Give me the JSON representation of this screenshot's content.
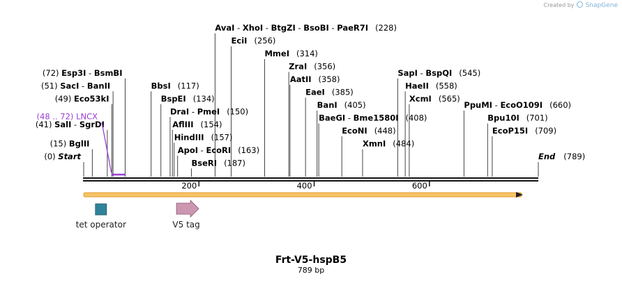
{
  "credit": {
    "text": "Created by",
    "brand": "SnapGene"
  },
  "plasmid": {
    "name": "Frt-V5-hspB5",
    "length_label": "789 bp",
    "length": 789
  },
  "colors": {
    "backbone": "#111111",
    "orf_fill": "#f4bd52",
    "orf_stroke": "#e08a1a",
    "tet_operator": "#2f8299",
    "v5_tag": "#cc96b1",
    "lncx": "#9b3fd6"
  },
  "ruler_ticks": [
    {
      "pos": 200,
      "label": "200"
    },
    {
      "pos": 400,
      "label": "400"
    },
    {
      "pos": 600,
      "label": "600"
    }
  ],
  "sites": [
    {
      "parts": [
        {
          "t": "AvaI",
          "b": true
        },
        {
          "t": "  -  ",
          "b": false
        },
        {
          "t": "XhoI",
          "b": true
        },
        {
          "t": "  -  ",
          "b": false
        },
        {
          "t": "BtgZI",
          "b": true
        },
        {
          "t": "  -  ",
          "b": false
        },
        {
          "t": "BsoBI",
          "b": true
        },
        {
          "t": "  -  ",
          "b": false
        },
        {
          "t": "PaeR7I",
          "b": true
        }
      ],
      "num": "(228)",
      "pos": 228,
      "row": 0
    },
    {
      "parts": [
        {
          "t": "EciI",
          "b": true
        }
      ],
      "num": "(256)",
      "pos": 256,
      "row": 1
    },
    {
      "parts": [
        {
          "t": "MmeI",
          "b": true
        }
      ],
      "num": "(314)",
      "pos": 314,
      "row": 2
    },
    {
      "parts": [
        {
          "t": "ZraI",
          "b": true
        }
      ],
      "num": "(356)",
      "pos": 356,
      "row": 3
    },
    {
      "parts": [
        {
          "t": "AatII",
          "b": true
        }
      ],
      "num": "(358)",
      "pos": 358,
      "row": 4
    },
    {
      "parts": [
        {
          "t": "EaeI",
          "b": true
        }
      ],
      "num": "(385)",
      "pos": 385,
      "row": 5
    },
    {
      "parts": [
        {
          "t": "BanI",
          "b": true
        }
      ],
      "num": "(405)",
      "pos": 405,
      "row": 6
    },
    {
      "parts": [
        {
          "t": "BaeGI",
          "b": true
        },
        {
          "t": "  -  ",
          "b": false
        },
        {
          "t": "Bme1580I",
          "b": true
        }
      ],
      "num": "(408)",
      "pos": 408,
      "row": 7
    },
    {
      "parts": [
        {
          "t": "EcoNI",
          "b": true
        }
      ],
      "num": "(448)",
      "pos": 448,
      "row": 8
    },
    {
      "parts": [
        {
          "t": "XmnI",
          "b": true
        }
      ],
      "num": "(484)",
      "pos": 484,
      "row": 9
    },
    {
      "parts": [
        {
          "t": "SapI",
          "b": true
        },
        {
          "t": "  -  ",
          "b": false
        },
        {
          "t": "BspQI",
          "b": true
        }
      ],
      "num": "(545)",
      "pos": 545,
      "row": 3.5
    },
    {
      "parts": [
        {
          "t": "HaeII",
          "b": true
        }
      ],
      "num": "(558)",
      "pos": 558,
      "row": 4.5
    },
    {
      "parts": [
        {
          "t": "XcmI",
          "b": true
        }
      ],
      "num": "(565)",
      "pos": 565,
      "row": 5.5
    },
    {
      "parts": [
        {
          "t": "PpuMI",
          "b": true
        },
        {
          "t": "  -  ",
          "b": false
        },
        {
          "t": "EcoO109I",
          "b": true
        }
      ],
      "num": "(660)",
      "pos": 660,
      "row": 6
    },
    {
      "parts": [
        {
          "t": "Bpu10I",
          "b": true
        }
      ],
      "num": "(701)",
      "pos": 701,
      "row": 7
    },
    {
      "parts": [
        {
          "t": "EcoP15I",
          "b": true
        }
      ],
      "num": "(709)",
      "pos": 709,
      "row": 8
    },
    {
      "parts": [
        {
          "t": "BbsI",
          "b": true
        }
      ],
      "num": "(117)",
      "pos": 117,
      "row": 4.5
    },
    {
      "parts": [
        {
          "t": "BspEI",
          "b": true
        }
      ],
      "num": "(134)",
      "pos": 134,
      "row": 5.5
    },
    {
      "parts": [
        {
          "t": "DraI",
          "b": true
        },
        {
          "t": "  -  ",
          "b": false
        },
        {
          "t": "PmeI",
          "b": true
        }
      ],
      "num": "(150)",
      "pos": 150,
      "row": 6.5
    },
    {
      "parts": [
        {
          "t": "AflIII",
          "b": true
        }
      ],
      "num": "(154)",
      "pos": 154,
      "row": 7.5
    },
    {
      "parts": [
        {
          "t": "HindIII",
          "b": true
        }
      ],
      "num": "(157)",
      "pos": 157,
      "row": 8.5
    },
    {
      "parts": [
        {
          "t": "ApoI",
          "b": true
        },
        {
          "t": "  -  ",
          "b": false
        },
        {
          "t": "EcoRI",
          "b": true
        }
      ],
      "num": "(163)",
      "pos": 163,
      "row": 9.5
    },
    {
      "parts": [
        {
          "t": "BseRI",
          "b": true
        }
      ],
      "num": "(187)",
      "pos": 187,
      "row": 10.5
    }
  ],
  "left_sites": [
    {
      "num": "(72)",
      "parts": [
        {
          "t": "Esp3I",
          "b": true
        },
        {
          "t": "  -  ",
          "b": false
        },
        {
          "t": "BsmBI",
          "b": true
        }
      ],
      "pos": 72,
      "row": 3.5
    },
    {
      "num": "(51)",
      "parts": [
        {
          "t": "SacI",
          "b": true
        },
        {
          "t": "  -  ",
          "b": false
        },
        {
          "t": "BanII",
          "b": true
        }
      ],
      "pos": 51,
      "row": 4.5
    },
    {
      "num": "(49)",
      "parts": [
        {
          "t": "Eco53kI",
          "b": true
        }
      ],
      "pos": 49,
      "row": 5.5
    },
    {
      "num": "(41)",
      "parts": [
        {
          "t": "SalI",
          "b": true
        },
        {
          "t": "  -  ",
          "b": false
        },
        {
          "t": "SgrDI",
          "b": true
        }
      ],
      "pos": 41,
      "row": 7.5
    },
    {
      "num": "(15)",
      "parts": [
        {
          "t": "BglII",
          "b": true
        }
      ],
      "pos": 15,
      "row": 9
    },
    {
      "num": "(0)",
      "parts": [
        {
          "t": "Start",
          "b": true,
          "i": true
        }
      ],
      "pos": 0,
      "row": 10
    }
  ],
  "lncx": {
    "range": "(48 .. 72)",
    "name": "LNCX",
    "start": 48,
    "end": 72
  },
  "end_marker": {
    "label": "End",
    "num": "(789)"
  },
  "features": [
    {
      "name": "tet operator",
      "pos": 30,
      "kind": "box"
    },
    {
      "name": "V5 tag",
      "pos": 178,
      "kind": "arrow"
    }
  ]
}
